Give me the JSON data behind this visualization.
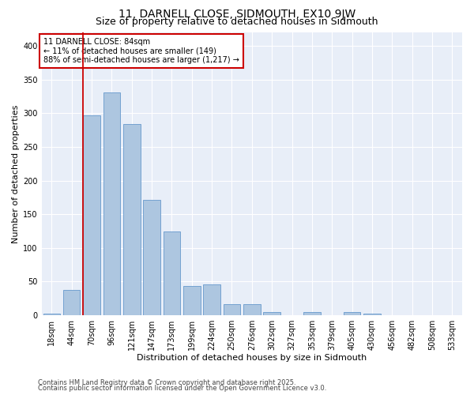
{
  "title1": "11, DARNELL CLOSE, SIDMOUTH, EX10 9JW",
  "title2": "Size of property relative to detached houses in Sidmouth",
  "xlabel": "Distribution of detached houses by size in Sidmouth",
  "ylabel": "Number of detached properties",
  "categories": [
    "18sqm",
    "44sqm",
    "70sqm",
    "96sqm",
    "121sqm",
    "147sqm",
    "173sqm",
    "199sqm",
    "224sqm",
    "250sqm",
    "276sqm",
    "302sqm",
    "327sqm",
    "353sqm",
    "379sqm",
    "405sqm",
    "430sqm",
    "456sqm",
    "482sqm",
    "508sqm",
    "533sqm"
  ],
  "values": [
    3,
    38,
    297,
    331,
    284,
    171,
    125,
    43,
    46,
    16,
    17,
    5,
    0,
    5,
    0,
    5,
    3,
    0,
    0,
    0,
    0
  ],
  "bar_color": "#adc6e0",
  "bar_edgecolor": "#6699cc",
  "background_color": "#e8eef8",
  "grid_color": "#ffffff",
  "vline_color": "#cc0000",
  "vline_pos": 1.575,
  "annotation_box_text": "11 DARNELL CLOSE: 84sqm\n← 11% of detached houses are smaller (149)\n88% of semi-detached houses are larger (1,217) →",
  "annotation_box_edgecolor": "#cc0000",
  "footer1": "Contains HM Land Registry data © Crown copyright and database right 2025.",
  "footer2": "Contains public sector information licensed under the Open Government Licence v3.0.",
  "ylim": [
    0,
    420
  ],
  "yticks": [
    0,
    50,
    100,
    150,
    200,
    250,
    300,
    350,
    400
  ],
  "title1_fontsize": 10,
  "title2_fontsize": 9,
  "axis_label_fontsize": 8,
  "tick_fontsize": 7,
  "annot_fontsize": 7,
  "footer_fontsize": 6
}
